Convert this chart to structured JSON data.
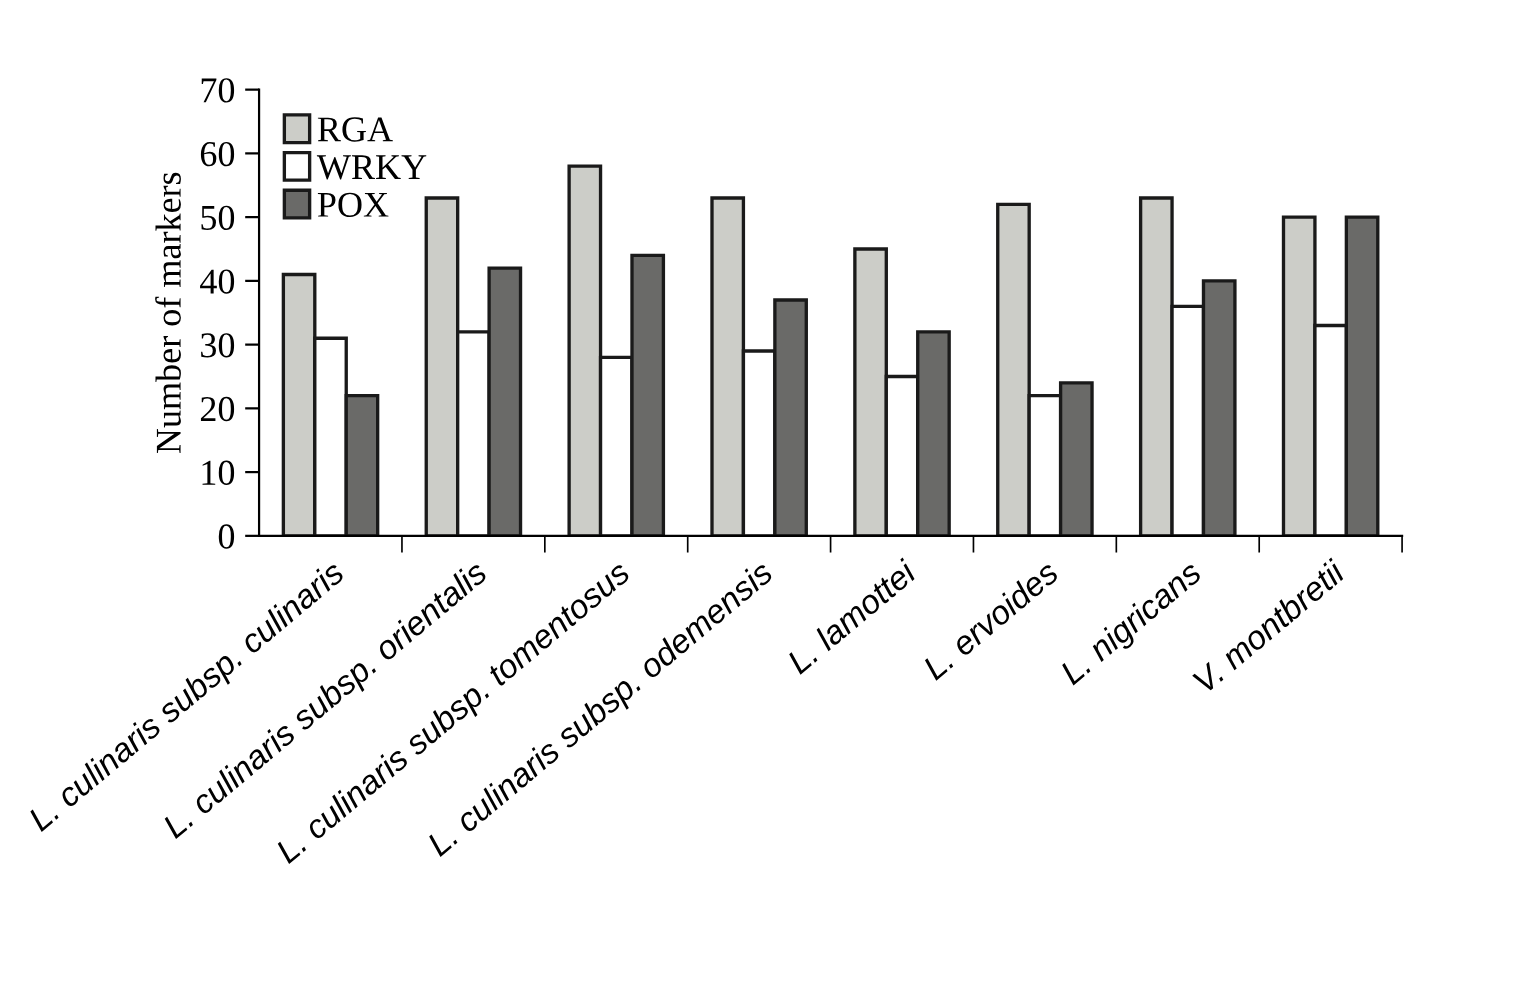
{
  "chart_data": {
    "type": "bar",
    "ylabel": "Number of markers",
    "categories": [
      "L. culinaris subsp. culinaris",
      "L. culinaris subsp. orientalis",
      "L. culinaris subsp. tomentosus",
      "L. culinaris subsp. odemensis",
      "L. lamottei",
      "L. ervoides",
      "L. nigricans",
      "V. montbretii"
    ],
    "series": [
      {
        "name": "RGA",
        "color": "#cccdc8",
        "values": [
          41,
          53,
          58,
          53,
          45,
          52,
          53,
          50
        ]
      },
      {
        "name": "WRKY",
        "color": "#ffffff",
        "values": [
          31,
          32,
          28,
          29,
          25,
          22,
          36,
          33
        ]
      },
      {
        "name": "POX",
        "color": "#6a6a68",
        "values": [
          22,
          42,
          44,
          37,
          32,
          24,
          40,
          50
        ]
      }
    ],
    "ylim": [
      0,
      70
    ],
    "yticks": [
      0,
      10,
      20,
      30,
      40,
      50,
      60,
      70
    ],
    "grid": false,
    "legend": "top left"
  }
}
